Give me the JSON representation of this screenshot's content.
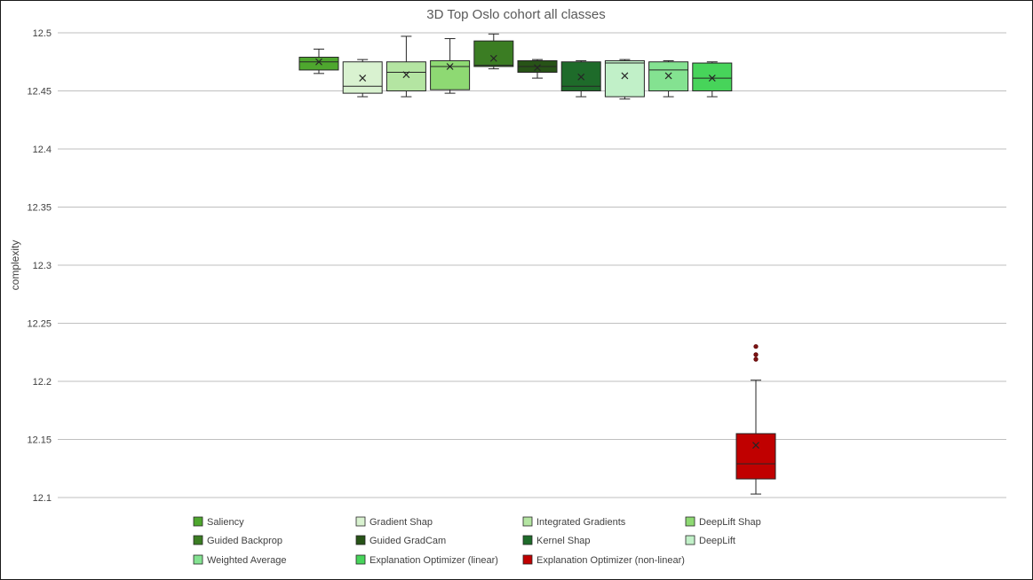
{
  "chart_data": {
    "type": "box",
    "title": "3D Top Oslo cohort all classes",
    "xlabel": "",
    "ylabel": "complexity",
    "ylim": [
      12.1,
      12.5
    ],
    "yticks": [
      "12.1",
      "12.15",
      "12.2",
      "12.25",
      "12.3",
      "12.35",
      "12.4",
      "12.45",
      "12.5"
    ],
    "grid": true,
    "legend_position": "bottom",
    "series": [
      {
        "name": "Saliency",
        "color": "#4ea72e",
        "min": 12.465,
        "q1": 12.468,
        "median": 12.475,
        "q3": 12.479,
        "max": 12.486,
        "mean": 12.475,
        "outliers": []
      },
      {
        "name": "Gradient Shap",
        "color": "#d9f2d0",
        "min": 12.445,
        "q1": 12.448,
        "median": 12.454,
        "q3": 12.475,
        "max": 12.477,
        "mean": 12.461,
        "outliers": []
      },
      {
        "name": "Integrated Gradients",
        "color": "#b4e5a2",
        "min": 12.445,
        "q1": 12.45,
        "median": 12.466,
        "q3": 12.475,
        "max": 12.497,
        "mean": 12.464,
        "outliers": []
      },
      {
        "name": "DeepLift Shap",
        "color": "#8ed973",
        "min": 12.448,
        "q1": 12.451,
        "median": 12.471,
        "q3": 12.476,
        "max": 12.495,
        "mean": 12.471,
        "outliers": []
      },
      {
        "name": "Guided Backprop",
        "color": "#3b7d23",
        "min": 12.469,
        "q1": 12.471,
        "median": 12.472,
        "q3": 12.493,
        "max": 12.499,
        "mean": 12.478,
        "outliers": []
      },
      {
        "name": "Guided GradCam",
        "color": "#275317",
        "min": 12.461,
        "q1": 12.466,
        "median": 12.471,
        "q3": 12.476,
        "max": 12.477,
        "mean": 12.47,
        "outliers": []
      },
      {
        "name": "Kernel Shap",
        "color": "#1e6b2a",
        "min": 12.445,
        "q1": 12.45,
        "median": 12.454,
        "q3": 12.475,
        "max": 12.476,
        "mean": 12.462,
        "outliers": []
      },
      {
        "name": "DeepLift",
        "color": "#c1f0c8",
        "min": 12.443,
        "q1": 12.445,
        "median": 12.474,
        "q3": 12.476,
        "max": 12.477,
        "mean": 12.463,
        "outliers": []
      },
      {
        "name": "Weighted Average",
        "color": "#84e291",
        "min": 12.445,
        "q1": 12.45,
        "median": 12.468,
        "q3": 12.475,
        "max": 12.476,
        "mean": 12.463,
        "outliers": []
      },
      {
        "name": "Explanation Optimizer (linear)",
        "color": "#47d45a",
        "min": 12.445,
        "q1": 12.45,
        "median": 12.461,
        "q3": 12.474,
        "max": 12.475,
        "mean": 12.461,
        "outliers": []
      },
      {
        "name": "Explanation Optimizer (non-linear)",
        "color": "#c00000",
        "min": 12.103,
        "q1": 12.116,
        "median": 12.129,
        "q3": 12.155,
        "max": 12.201,
        "mean": 12.145,
        "outliers": [
          12.219,
          12.223,
          12.23
        ]
      }
    ]
  }
}
